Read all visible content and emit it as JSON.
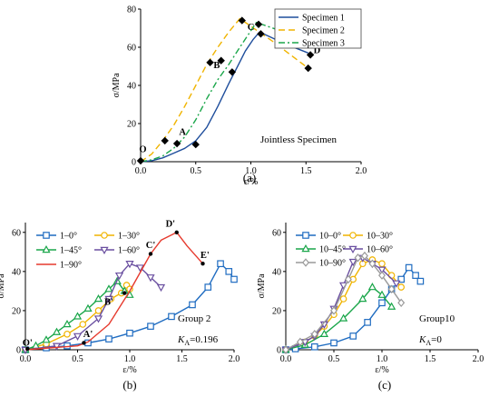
{
  "chart_data": [
    {
      "id": "a",
      "type": "line",
      "caption": "(a)",
      "xlabel": "ε/%",
      "ylabel": "σ/MPa",
      "xlim": [
        0,
        2
      ],
      "ylim": [
        0,
        80
      ],
      "xticks": [
        "0.0",
        "0.5",
        "1.0",
        "1.5",
        "2.0"
      ],
      "yticks": [
        "0",
        "20",
        "40",
        "60",
        "80"
      ],
      "legend_position": "top-right",
      "series": [
        {
          "name": "Specimen 1",
          "color": "#1f4e9c",
          "dash": "solid",
          "x": [
            0,
            0.1,
            0.2,
            0.3,
            0.4,
            0.5,
            0.6,
            0.7,
            0.8,
            0.88,
            0.95,
            1.02,
            1.08,
            1.3,
            1.52
          ],
          "y": [
            0,
            0.5,
            2,
            4.5,
            7,
            11,
            18,
            29,
            41,
            50,
            58,
            64,
            68,
            62,
            57
          ]
        },
        {
          "name": "Specimen 2",
          "color": "#f0b400",
          "dash": "dashed",
          "x": [
            0,
            0.1,
            0.2,
            0.3,
            0.4,
            0.5,
            0.6,
            0.7,
            0.8,
            0.9,
            1.2,
            1.52
          ],
          "y": [
            0,
            4,
            11,
            19,
            29,
            40,
            51,
            60,
            68,
            75,
            63,
            49
          ]
        },
        {
          "name": "Specimen 3",
          "color": "#1aa64a",
          "dash": "dashdot",
          "x": [
            0,
            0.1,
            0.2,
            0.3,
            0.4,
            0.5,
            0.6,
            0.7,
            0.8,
            0.9,
            1.05,
            1.3,
            1.48
          ],
          "y": [
            0,
            1,
            3,
            7,
            13,
            22,
            33,
            43,
            51,
            60,
            73,
            68,
            64
          ]
        }
      ],
      "markers": [
        {
          "x": 0.0,
          "y": 0.5
        },
        {
          "x": 0.22,
          "y": 11
        },
        {
          "x": 0.33,
          "y": 9.5
        },
        {
          "x": 0.5,
          "y": 9
        },
        {
          "x": 0.63,
          "y": 52
        },
        {
          "x": 0.73,
          "y": 53
        },
        {
          "x": 0.83,
          "y": 47
        },
        {
          "x": 0.92,
          "y": 74
        },
        {
          "x": 1.07,
          "y": 72
        },
        {
          "x": 1.09,
          "y": 67
        },
        {
          "x": 1.48,
          "y": 64
        },
        {
          "x": 1.52,
          "y": 49
        },
        {
          "x": 1.54,
          "y": 56
        }
      ],
      "annotations": [
        {
          "text": "O",
          "x": 0.02,
          "y": 5
        },
        {
          "text": "A",
          "x": 0.38,
          "y": 14
        },
        {
          "text": "B",
          "x": 0.69,
          "y": 49
        },
        {
          "text": "C",
          "x": 1.0,
          "y": 69
        },
        {
          "text": "D",
          "x": 1.6,
          "y": 57
        }
      ],
      "note": "Jointless Specimen"
    },
    {
      "id": "b",
      "type": "line",
      "caption": "(b)",
      "xlabel": "ε/%",
      "ylabel": "σ/MPa",
      "xlim": [
        0,
        2
      ],
      "ylim": [
        0,
        65
      ],
      "xticks": [
        "0.0",
        "0.5",
        "1.0",
        "1.5",
        "2.0"
      ],
      "yticks": [
        "0",
        "20",
        "40",
        "60"
      ],
      "legend_position": "top-left",
      "series": [
        {
          "name": "1–0°",
          "color": "#1f6cc1",
          "marker": "square",
          "x": [
            0,
            0.2,
            0.4,
            0.6,
            0.8,
            1.0,
            1.2,
            1.4,
            1.6,
            1.75,
            1.87,
            1.95,
            2.0
          ],
          "y": [
            0,
            1,
            2,
            3.5,
            5.5,
            8.5,
            12,
            17,
            23,
            32,
            44,
            40,
            36
          ]
        },
        {
          "name": "1–30°",
          "color": "#f0b400",
          "marker": "circle",
          "x": [
            0,
            0.2,
            0.4,
            0.55,
            0.7,
            0.82,
            0.92,
            0.97,
            1.0
          ],
          "y": [
            0,
            3,
            8,
            13,
            20,
            26,
            29,
            33,
            31
          ]
        },
        {
          "name": "1–45°",
          "color": "#1aa64a",
          "marker": "triangle",
          "x": [
            0,
            0.1,
            0.2,
            0.3,
            0.4,
            0.5,
            0.6,
            0.7,
            0.8,
            0.88,
            0.95,
            1.0
          ],
          "y": [
            0,
            2,
            5,
            9,
            13,
            17,
            21,
            26,
            31,
            35,
            30,
            28
          ]
        },
        {
          "name": "1–60°",
          "color": "#6a4fa0",
          "marker": "triangle-down",
          "x": [
            0,
            0.3,
            0.5,
            0.7,
            0.8,
            0.9,
            1.0,
            1.1,
            1.2,
            1.3
          ],
          "y": [
            0,
            2,
            7,
            16,
            26,
            38,
            44,
            42,
            37,
            32
          ]
        },
        {
          "name": "1–90°",
          "color": "#e63a2e",
          "marker": "none",
          "x": [
            0,
            0.5,
            0.6,
            0.8,
            1.0,
            1.2,
            1.3,
            1.45,
            1.55,
            1.7
          ],
          "y": [
            0,
            2,
            4,
            13,
            30,
            49,
            56,
            60,
            53,
            44
          ]
        }
      ],
      "markers": [
        {
          "x": 0.02,
          "y": 0.5
        },
        {
          "x": 0.56,
          "y": 3.5
        },
        {
          "x": 0.95,
          "y": 29
        },
        {
          "x": 1.2,
          "y": 49
        },
        {
          "x": 1.45,
          "y": 60
        },
        {
          "x": 1.7,
          "y": 44
        }
      ],
      "annotations": [
        {
          "text": "O'",
          "x": 0.02,
          "y": 2
        },
        {
          "text": "A'",
          "x": 0.6,
          "y": 6.5
        },
        {
          "text": "B'",
          "x": 0.8,
          "y": 23
        },
        {
          "text": "C'",
          "x": 1.2,
          "y": 52
        },
        {
          "text": "D'",
          "x": 1.39,
          "y": 63
        },
        {
          "text": "E'",
          "x": 1.72,
          "y": 47
        }
      ],
      "note": "Group 2",
      "note2": "K",
      "note2_sub": "A",
      "note2_val": "=0.196"
    },
    {
      "id": "c",
      "type": "line",
      "caption": "(c)",
      "xlabel": "ε/%",
      "ylabel": "σ/MPa",
      "xlim": [
        0,
        2
      ],
      "ylim": [
        0,
        65
      ],
      "xticks": [
        "0.0",
        "0.5",
        "1.0",
        "1.5",
        "2.0"
      ],
      "yticks": [
        "0",
        "20",
        "40",
        "60"
      ],
      "legend_position": "top-left",
      "series": [
        {
          "name": "10–0°",
          "color": "#1f6cc1",
          "marker": "square",
          "x": [
            0,
            0.1,
            0.3,
            0.5,
            0.7,
            0.85,
            1.0,
            1.1,
            1.2,
            1.28,
            1.35,
            1.4
          ],
          "y": [
            0,
            0.5,
            1.5,
            3.5,
            7,
            14,
            24,
            31,
            36,
            42,
            38,
            35
          ]
        },
        {
          "name": "10–30°",
          "color": "#f0b400",
          "marker": "circle",
          "x": [
            0,
            0.2,
            0.3,
            0.4,
            0.5,
            0.6,
            0.7,
            0.8,
            0.9,
            1.0,
            1.1,
            1.2
          ],
          "y": [
            0,
            4,
            7,
            12,
            18,
            26,
            36,
            44,
            46,
            44,
            38,
            32
          ]
        },
        {
          "name": "10–45°",
          "color": "#1aa64a",
          "marker": "triangle",
          "x": [
            0,
            0.2,
            0.4,
            0.6,
            0.8,
            0.9,
            1.0,
            1.1
          ],
          "y": [
            0,
            2.5,
            8,
            16,
            26,
            32,
            28,
            22
          ]
        },
        {
          "name": "10–60°",
          "color": "#6a4fa0",
          "marker": "triangle-down",
          "x": [
            0,
            0.2,
            0.3,
            0.4,
            0.5,
            0.6,
            0.7,
            0.8,
            0.9,
            1.0,
            1.15
          ],
          "y": [
            0,
            4,
            7,
            13,
            21,
            33,
            45,
            47,
            44,
            41,
            34
          ]
        },
        {
          "name": "10–90°",
          "color": "#9a9a9a",
          "marker": "diamond",
          "x": [
            0,
            0.15,
            0.3,
            0.5,
            0.65,
            0.75,
            0.82,
            0.9,
            1.0,
            1.1,
            1.2
          ],
          "y": [
            0,
            4,
            8,
            20,
            36,
            47,
            48,
            44,
            38,
            31,
            24
          ]
        }
      ],
      "note": "Group10",
      "note2": "K",
      "note2_sub": "A",
      "note2_val": "=0"
    }
  ]
}
